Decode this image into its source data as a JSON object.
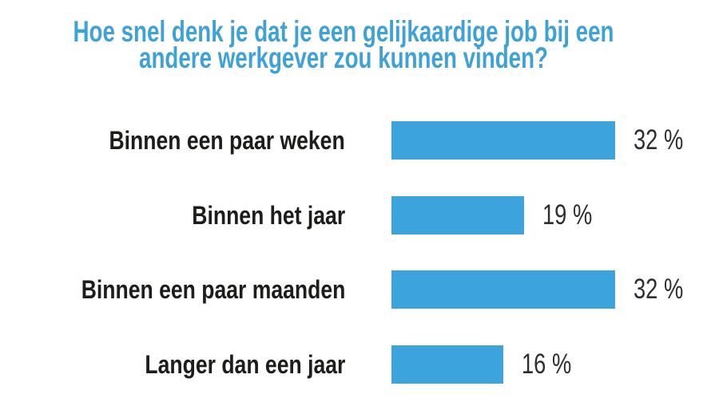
{
  "page": {
    "background": "#ffffff"
  },
  "title": {
    "text": "Hoe snel denk je dat je een gelijkaardige job bij een andere werkgever zou kunnen vinden?",
    "lines": [
      "Hoe snel denk je dat je een gelijkaardige job bij een",
      "andere werkgever zou kunnen vinden?"
    ],
    "color": "#3fa2d6"
  },
  "colors": {
    "bar": "#3ca3dc",
    "category_label": "#1d1d1b",
    "value_label": "#2e2e2e",
    "background": "#ffffff"
  },
  "chart_data": {
    "type": "bar",
    "orientation": "horizontal",
    "title": "Hoe snel denk je dat je een gelijkaardige job bij een andere werkgever zou kunnen vinden?",
    "categories": [
      "Binnen een paar weken",
      "Binnen het jaar",
      "Binnen een paar maanden",
      "Langer dan een jaar"
    ],
    "values": [
      32,
      19,
      32,
      16
    ],
    "value_labels": [
      "32 %",
      "19 %",
      "32 %",
      "16 %"
    ],
    "unit": "%",
    "xlim": [
      0,
      32
    ],
    "grid": false,
    "legend": false,
    "axis_labels_visible": false,
    "bar_color": "#3ca3dc"
  }
}
